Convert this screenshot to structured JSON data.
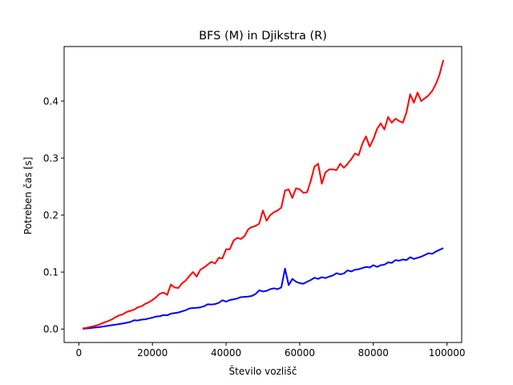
{
  "chart_data": {
    "type": "line",
    "title": "BFS (M) in Djikstra (R)",
    "xlabel": "Število vozlišč",
    "ylabel": "Potreben čas [s]",
    "xlim": [
      -4000,
      104000
    ],
    "ylim": [
      -0.0236,
      0.4957
    ],
    "x_ticks": [
      0,
      20000,
      40000,
      60000,
      80000,
      100000
    ],
    "y_ticks": [
      0.0,
      0.1,
      0.2,
      0.3,
      0.4
    ],
    "x_tick_labels": [
      "0",
      "20000",
      "40000",
      "60000",
      "80000",
      "100000"
    ],
    "y_tick_labels": [
      "0.0",
      "0.1",
      "0.2",
      "0.3",
      "0.4"
    ],
    "grid": false,
    "legend": "none",
    "x": [
      1000,
      2000,
      3000,
      4000,
      5000,
      6000,
      7000,
      8000,
      9000,
      10000,
      11000,
      12000,
      13000,
      14000,
      15000,
      16000,
      17000,
      18000,
      19000,
      20000,
      21000,
      22000,
      23000,
      24000,
      25000,
      26000,
      27000,
      28000,
      29000,
      30000,
      31000,
      32000,
      33000,
      34000,
      35000,
      36000,
      37000,
      38000,
      39000,
      40000,
      41000,
      42000,
      43000,
      44000,
      45000,
      46000,
      47000,
      48000,
      49000,
      50000,
      51000,
      52000,
      53000,
      54000,
      55000,
      56000,
      57000,
      58000,
      59000,
      60000,
      61000,
      62000,
      63000,
      64000,
      65000,
      66000,
      67000,
      68000,
      69000,
      70000,
      71000,
      72000,
      73000,
      74000,
      75000,
      76000,
      77000,
      78000,
      79000,
      80000,
      81000,
      82000,
      83000,
      84000,
      85000,
      86000,
      87000,
      88000,
      89000,
      90000,
      91000,
      92000,
      93000,
      94000,
      95000,
      96000,
      97000,
      98000,
      99000
    ],
    "series": [
      {
        "color": "#0000ff",
        "values": [
          0.0005,
          0.001,
          0.0015,
          0.0025,
          0.003,
          0.0038,
          0.0048,
          0.0058,
          0.0068,
          0.0078,
          0.0088,
          0.0098,
          0.011,
          0.0125,
          0.0155,
          0.015,
          0.0165,
          0.017,
          0.0185,
          0.02,
          0.022,
          0.0225,
          0.0245,
          0.024,
          0.027,
          0.028,
          0.029,
          0.031,
          0.033,
          0.036,
          0.037,
          0.0372,
          0.038,
          0.04,
          0.0435,
          0.043,
          0.0438,
          0.046,
          0.0505,
          0.048,
          0.051,
          0.052,
          0.0535,
          0.056,
          0.0565,
          0.057,
          0.058,
          0.0615,
          0.068,
          0.066,
          0.067,
          0.07,
          0.0715,
          0.07,
          0.073,
          0.106,
          0.077,
          0.088,
          0.083,
          0.0805,
          0.0795,
          0.083,
          0.086,
          0.09,
          0.088,
          0.091,
          0.0895,
          0.092,
          0.094,
          0.098,
          0.096,
          0.0975,
          0.103,
          0.101,
          0.104,
          0.105,
          0.107,
          0.109,
          0.108,
          0.112,
          0.109,
          0.112,
          0.113,
          0.117,
          0.116,
          0.121,
          0.12,
          0.122,
          0.121,
          0.126,
          0.123,
          0.125,
          0.127,
          0.13,
          0.133,
          0.132,
          0.136,
          0.139,
          0.142
        ]
      },
      {
        "color": "#ff0000",
        "values": [
          0.001,
          0.002,
          0.0035,
          0.005,
          0.0065,
          0.009,
          0.012,
          0.014,
          0.017,
          0.021,
          0.024,
          0.026,
          0.03,
          0.032,
          0.034,
          0.038,
          0.04,
          0.044,
          0.047,
          0.051,
          0.056,
          0.062,
          0.064,
          0.06,
          0.078,
          0.073,
          0.072,
          0.08,
          0.085,
          0.093,
          0.1,
          0.092,
          0.104,
          0.108,
          0.113,
          0.118,
          0.115,
          0.125,
          0.124,
          0.14,
          0.14,
          0.155,
          0.16,
          0.158,
          0.163,
          0.175,
          0.179,
          0.181,
          0.185,
          0.208,
          0.19,
          0.2,
          0.205,
          0.208,
          0.213,
          0.243,
          0.245,
          0.23,
          0.247,
          0.245,
          0.239,
          0.24,
          0.26,
          0.285,
          0.29,
          0.255,
          0.275,
          0.28,
          0.28,
          0.279,
          0.29,
          0.283,
          0.29,
          0.298,
          0.308,
          0.305,
          0.325,
          0.338,
          0.32,
          0.333,
          0.351,
          0.361,
          0.35,
          0.372,
          0.362,
          0.369,
          0.365,
          0.362,
          0.38,
          0.412,
          0.397,
          0.415,
          0.4,
          0.405,
          0.41,
          0.418,
          0.43,
          0.447,
          0.472
        ]
      }
    ]
  }
}
